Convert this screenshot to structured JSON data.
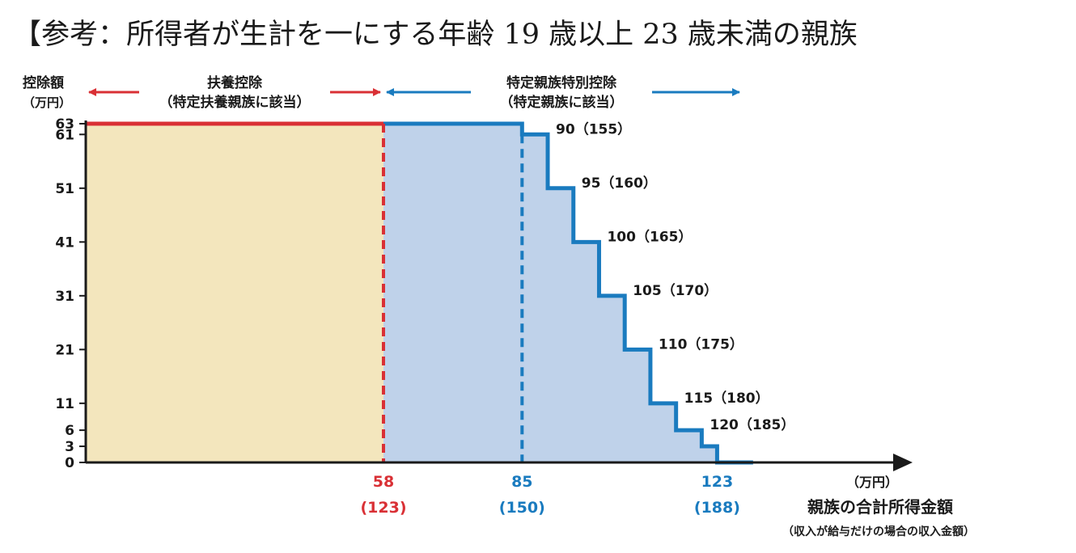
{
  "title": "【参考：所得者が生計を一にする年齢 19 歳以上 23 歳未満の親族",
  "colors": {
    "dependent": "#d93035",
    "special": "#1a7bbf",
    "fill_dependent": "#f3e6bd",
    "fill_special": "#bfd2ea",
    "axis": "#1a1a1a"
  },
  "sections": {
    "dependent_title": "扶養控除",
    "dependent_sub": "（特定扶養親族に該当）",
    "special_title": "特定親族特別控除",
    "special_sub": "（特定親族に該当）"
  },
  "chart_data": {
    "type": "area",
    "title": "【参考：所得者が生計を一にする年齢 19 歳以上 23 歳未満の親族",
    "ylabel_line1": "控除額",
    "ylabel_line2": "（万円）",
    "xlabel_unit": "（万円）",
    "xlabel": "親族の合計所得金額",
    "xlabel_sub": "（収入が給与だけの場合の収入金額）",
    "ylim": [
      0,
      63
    ],
    "xlim": [
      0,
      135
    ],
    "y_ticks": [
      "0",
      "3",
      "6",
      "11",
      "21",
      "31",
      "41",
      "51",
      "61",
      "63"
    ],
    "x_markers": [
      {
        "value": "58",
        "sub": "(123)",
        "series": "dependent"
      },
      {
        "value": "85",
        "sub": "(150)",
        "series": "special"
      },
      {
        "value": "123",
        "sub": "(188)",
        "series": "special"
      }
    ],
    "series": [
      {
        "name": "扶養控除",
        "x": [
          0,
          58
        ],
        "y": [
          63,
          63
        ]
      },
      {
        "name": "特定親族特別控除",
        "x": [
          58,
          85,
          90,
          95,
          100,
          105,
          110,
          115,
          120,
          123,
          130
        ],
        "y": [
          63,
          61,
          51,
          41,
          31,
          21,
          11,
          6,
          3,
          0,
          0
        ]
      }
    ],
    "step_labels": [
      "90（155）",
      "95（160）",
      "100（165）",
      "105（170）",
      "110（175）",
      "115（180）",
      "120（185）"
    ]
  }
}
